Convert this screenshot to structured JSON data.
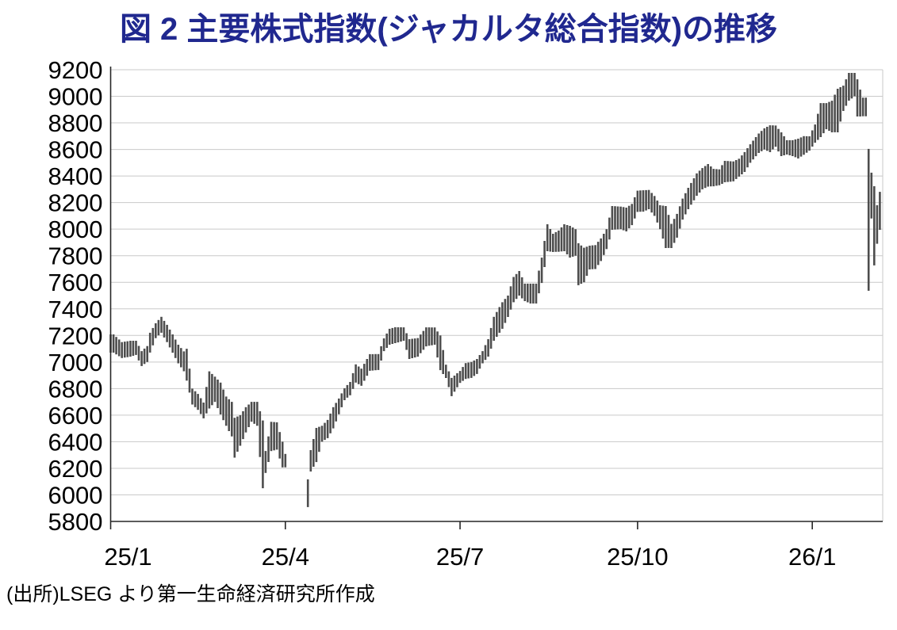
{
  "figure": {
    "title": "図 2  主要株式指数(ジャカルタ総合指数)の推移",
    "source": "(出所)LSEG より第一生命経済研究所作成",
    "title_color": "#20288F"
  },
  "chart_data": {
    "type": "hlc_bar",
    "title": "図 2  主要株式指数(ジャカルタ総合指数)の推移",
    "series_name": "ジャカルタ総合指数 (日次高値-安値バー)",
    "ylim": [
      5800,
      9200
    ],
    "ytick_step": 200,
    "yticks": [
      9200,
      9000,
      8800,
      8600,
      8400,
      8200,
      8000,
      7800,
      7600,
      7400,
      7200,
      7000,
      6800,
      6600,
      6400,
      6200,
      6000,
      5800
    ],
    "xticks": [
      {
        "label": "25/1",
        "day": 0
      },
      {
        "label": "25/4",
        "day": 62
      },
      {
        "label": "25/7",
        "day": 124
      },
      {
        "label": "25/10",
        "day": 187
      },
      {
        "label": "26/1",
        "day": 249
      }
    ],
    "total_days": 274,
    "gaps": [
      [
        63,
        69
      ]
    ],
    "grid": true,
    "legend": "none",
    "bar_color": "#4D4D4D",
    "grid_color": "#C9C9C9",
    "axis_color": "#262626",
    "anchors_format": "[trading_day, low, high] sampled every 2-3 days; daily bars linearly interpolated",
    "anchors": [
      [
        1,
        7071,
        7208
      ],
      [
        4,
        7030,
        7150
      ],
      [
        7,
        7040,
        7160
      ],
      [
        9,
        7053,
        7160
      ],
      [
        11,
        6970,
        7082
      ],
      [
        13,
        7000,
        7120
      ],
      [
        14,
        7071,
        7220
      ],
      [
        16,
        7180,
        7292
      ],
      [
        18,
        7220,
        7340
      ],
      [
        20,
        7150,
        7280
      ],
      [
        22,
        7070,
        7208
      ],
      [
        24,
        6990,
        7130
      ],
      [
        26,
        6930,
        7080
      ],
      [
        27,
        6860,
        7100
      ],
      [
        29,
        6680,
        6800
      ],
      [
        31,
        6640,
        6760
      ],
      [
        33,
        6576,
        6695
      ],
      [
        35,
        6650,
        6930
      ],
      [
        37,
        6700,
        6890
      ],
      [
        39,
        6605,
        6845
      ],
      [
        41,
        6520,
        6740
      ],
      [
        43,
        6440,
        6700
      ],
      [
        44,
        6280,
        6580
      ],
      [
        46,
        6370,
        6600
      ],
      [
        48,
        6470,
        6660
      ],
      [
        50,
        6550,
        6700
      ],
      [
        52,
        6520,
        6700
      ],
      [
        54,
        6050,
        6560
      ],
      [
        55,
        6165,
        6330
      ],
      [
        57,
        6330,
        6550
      ],
      [
        59,
        6340,
        6546
      ],
      [
        61,
        6207,
        6400
      ],
      [
        62,
        6207,
        6308
      ],
      [
        70,
        5908,
        6117
      ],
      [
        71,
        6176,
        6337
      ],
      [
        73,
        6247,
        6504
      ],
      [
        75,
        6400,
        6520
      ],
      [
        77,
        6427,
        6564
      ],
      [
        79,
        6500,
        6660
      ],
      [
        81,
        6606,
        6725
      ],
      [
        83,
        6713,
        6803
      ],
      [
        85,
        6750,
        6850
      ],
      [
        87,
        6845,
        6982
      ],
      [
        89,
        6821,
        6950
      ],
      [
        92,
        6934,
        7059
      ],
      [
        95,
        6940,
        7060
      ],
      [
        97,
        7082,
        7178
      ],
      [
        99,
        7130,
        7250
      ],
      [
        101,
        7142,
        7262
      ],
      [
        104,
        7160,
        7261
      ],
      [
        106,
        7023,
        7172
      ],
      [
        109,
        7040,
        7180
      ],
      [
        112,
        7118,
        7261
      ],
      [
        115,
        7130,
        7260
      ],
      [
        117,
        6939,
        7200
      ],
      [
        119,
        6880,
        6980
      ],
      [
        121,
        6743,
        6880
      ],
      [
        124,
        6843,
        6933
      ],
      [
        126,
        6873,
        6992
      ],
      [
        128,
        6880,
        7000
      ],
      [
        130,
        6910,
        7023
      ],
      [
        132,
        6990,
        7082
      ],
      [
        134,
        7041,
        7172
      ],
      [
        136,
        7160,
        7340
      ],
      [
        139,
        7250,
        7450
      ],
      [
        141,
        7339,
        7500
      ],
      [
        143,
        7450,
        7640
      ],
      [
        145,
        7500,
        7685
      ],
      [
        147,
        7458,
        7590
      ],
      [
        149,
        7440,
        7590
      ],
      [
        151,
        7440,
        7590
      ],
      [
        153,
        7595,
        7786
      ],
      [
        155,
        7834,
        8037
      ],
      [
        157,
        7828,
        7965
      ],
      [
        159,
        7830,
        7990
      ],
      [
        161,
        7834,
        8037
      ],
      [
        163,
        7786,
        8025
      ],
      [
        165,
        7800,
        8000
      ],
      [
        166,
        7578,
        7894
      ],
      [
        168,
        7600,
        7860
      ],
      [
        170,
        7697,
        7876
      ],
      [
        172,
        7700,
        7880
      ],
      [
        174,
        7760,
        7930
      ],
      [
        176,
        7850,
        8000
      ],
      [
        178,
        7995,
        8174
      ],
      [
        181,
        8000,
        8170
      ],
      [
        183,
        7983,
        8162
      ],
      [
        185,
        8030,
        8190
      ],
      [
        187,
        8130,
        8290
      ],
      [
        189,
        8132,
        8293
      ],
      [
        191,
        8150,
        8295
      ],
      [
        193,
        8100,
        8250
      ],
      [
        195,
        8000,
        8180
      ],
      [
        197,
        7858,
        8174
      ],
      [
        199,
        7858,
        8040
      ],
      [
        201,
        7936,
        8115
      ],
      [
        203,
        8072,
        8230
      ],
      [
        205,
        8150,
        8311
      ],
      [
        208,
        8251,
        8420
      ],
      [
        210,
        8300,
        8460
      ],
      [
        212,
        8320,
        8490
      ],
      [
        214,
        8323,
        8454
      ],
      [
        216,
        8330,
        8450
      ],
      [
        218,
        8353,
        8514
      ],
      [
        221,
        8360,
        8510
      ],
      [
        223,
        8395,
        8530
      ],
      [
        225,
        8430,
        8580
      ],
      [
        227,
        8500,
        8639
      ],
      [
        230,
        8574,
        8720
      ],
      [
        232,
        8600,
        8759
      ],
      [
        234,
        8580,
        8782
      ],
      [
        236,
        8620,
        8780
      ],
      [
        238,
        8550,
        8729
      ],
      [
        240,
        8562,
        8670
      ],
      [
        242,
        8550,
        8670
      ],
      [
        244,
        8532,
        8681
      ],
      [
        246,
        8560,
        8700
      ],
      [
        248,
        8591,
        8699
      ],
      [
        250,
        8651,
        8788
      ],
      [
        252,
        8693,
        8949
      ],
      [
        254,
        8752,
        8949
      ],
      [
        256,
        8729,
        8967
      ],
      [
        258,
        8729,
        9057
      ],
      [
        260,
        8890,
        9080
      ],
      [
        262,
        8967,
        9176
      ],
      [
        264,
        9000,
        9176
      ],
      [
        265,
        8848,
        9128
      ],
      [
        266,
        8848,
        9050
      ],
      [
        267,
        8850,
        8990
      ],
      [
        268,
        8850,
        8990
      ],
      [
        269,
        7536,
        8604
      ],
      [
        270,
        8080,
        8425
      ],
      [
        271,
        7727,
        8323
      ],
      [
        272,
        7890,
        8180
      ],
      [
        273,
        7995,
        8281
      ]
    ]
  }
}
